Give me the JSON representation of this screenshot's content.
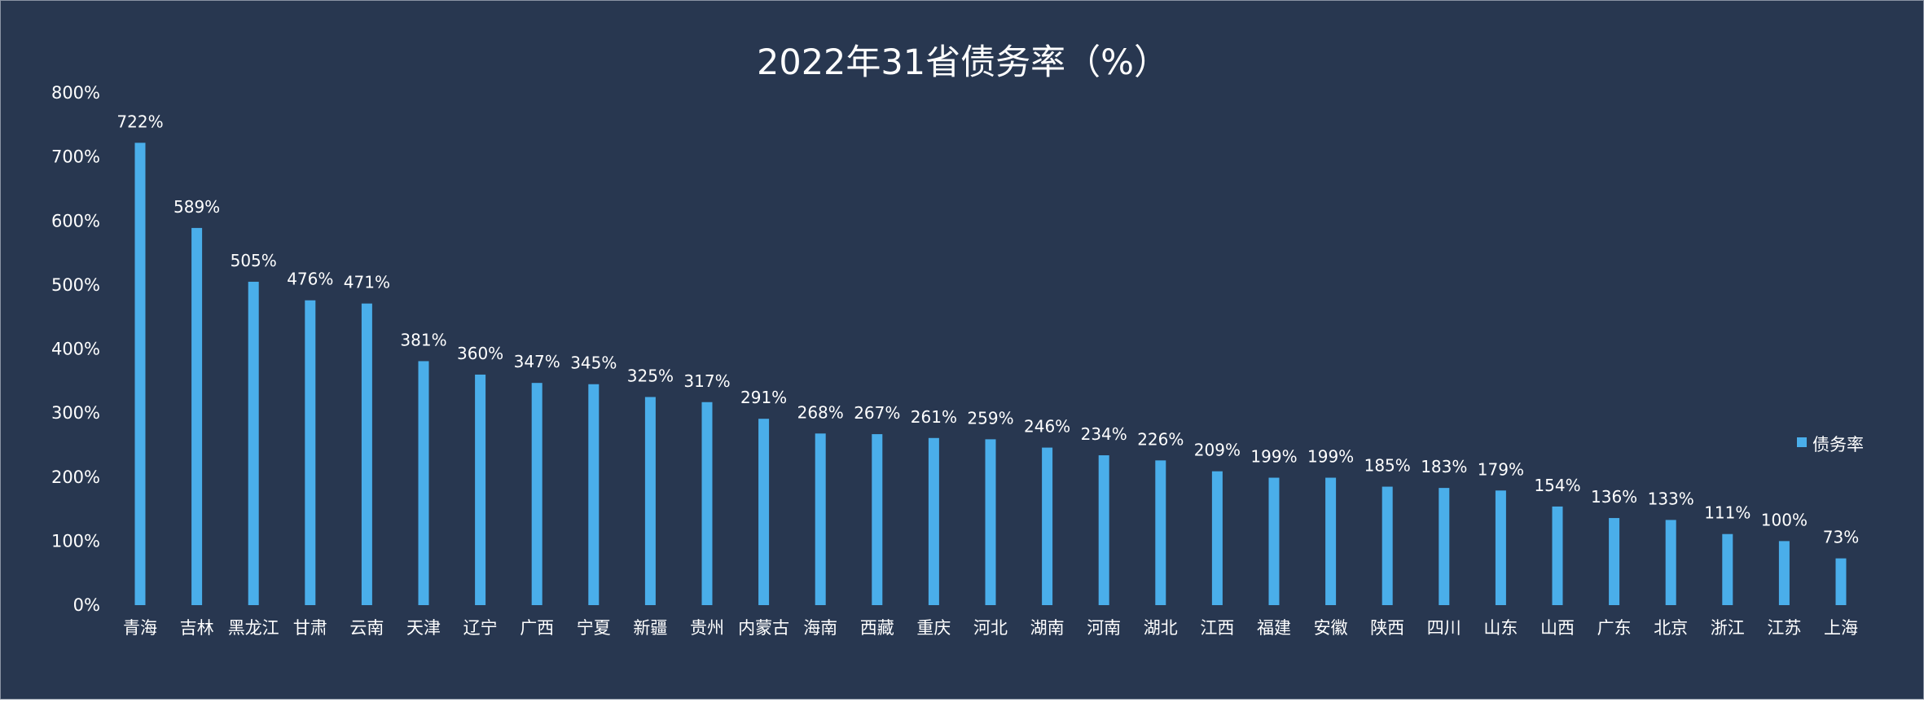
{
  "chart_data": {
    "type": "bar",
    "title": "2022年31省债务率（%）",
    "categories": [
      "青海",
      "吉林",
      "黑龙江",
      "甘肃",
      "云南",
      "天津",
      "辽宁",
      "广西",
      "宁夏",
      "新疆",
      "贵州",
      "内蒙古",
      "海南",
      "西藏",
      "重庆",
      "河北",
      "湖南",
      "河南",
      "湖北",
      "江西",
      "福建",
      "安徽",
      "陕西",
      "四川",
      "山东",
      "山西",
      "广东",
      "北京",
      "浙江",
      "江苏",
      "上海"
    ],
    "series": [
      {
        "name": "债务率",
        "values": [
          722,
          589,
          505,
          476,
          471,
          381,
          360,
          347,
          345,
          325,
          317,
          291,
          268,
          267,
          261,
          259,
          246,
          234,
          226,
          209,
          199,
          199,
          185,
          183,
          179,
          154,
          136,
          133,
          111,
          100,
          73
        ],
        "labels": [
          "722%",
          "589%",
          "505%",
          "476%",
          "471%",
          "381%",
          "360%",
          "347%",
          "345%",
          "325%",
          "317%",
          "291%",
          "268%",
          "267%",
          "261%",
          "259%",
          "246%",
          "234%",
          "226%",
          "209%",
          "199%",
          "199%",
          "185%",
          "183%",
          "179%",
          "154%",
          "136%",
          "133%",
          "111%",
          "100%",
          "73%"
        ]
      }
    ],
    "ylim": [
      0,
      800
    ],
    "yticks": [
      "0%",
      "100%",
      "200%",
      "300%",
      "400%",
      "500%",
      "600%",
      "700%",
      "800%"
    ],
    "xlabel": "",
    "ylabel": "",
    "grid": false,
    "legend_position": "right",
    "colors": {
      "background": "#283750",
      "bar": "#4aaeea",
      "text": "#ffffff"
    }
  }
}
